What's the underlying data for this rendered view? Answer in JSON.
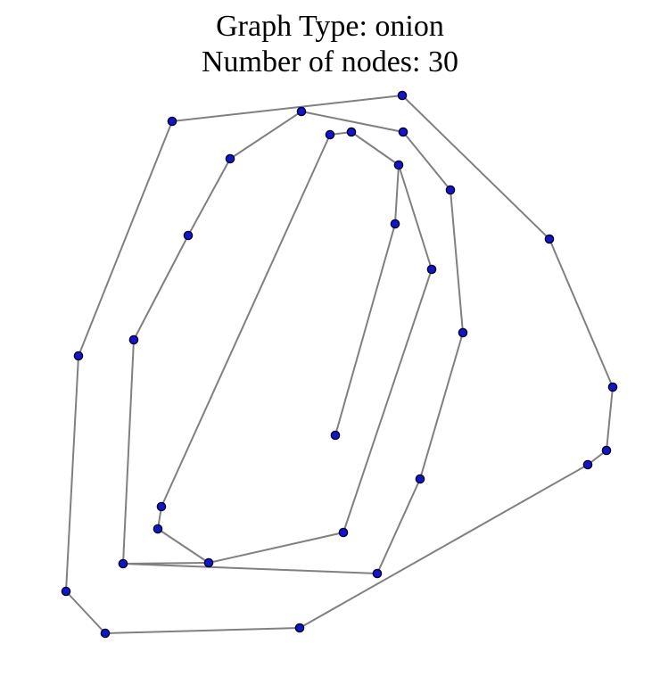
{
  "title": {
    "line1": "Graph Type: onion",
    "line2": "Number of nodes: 30"
  },
  "colors": {
    "node_fill": "#1515c8",
    "node_stroke": "#000033",
    "edge": "#808080",
    "background": "#ffffff"
  },
  "graph": {
    "type": "onion",
    "node_count": 30,
    "path_order": [
      "n0",
      "n1",
      "n2",
      "n3",
      "n4",
      "n5",
      "n6",
      "n7",
      "n8",
      "n9",
      "n10",
      "n11",
      "n12",
      "n13",
      "n14",
      "n15",
      "n16",
      "n17",
      "n18",
      "n19",
      "n20",
      "n21",
      "n22",
      "n23",
      "n24",
      "n25",
      "n26",
      "n27",
      "n28",
      "n29"
    ]
  }
}
